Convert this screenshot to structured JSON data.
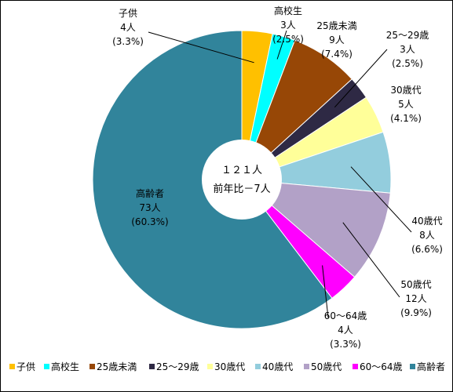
{
  "chart_data": {
    "type": "pie",
    "style": "donut",
    "center_text": {
      "line1": "１２１人",
      "line2": "前年比－7人"
    },
    "slices": [
      {
        "name": "子供",
        "value": 4,
        "count_label": "4人",
        "pct_label": "(3.3%)",
        "color": "#ffc000"
      },
      {
        "name": "高校生",
        "value": 3,
        "count_label": "3人",
        "pct_label": "(2.5%)",
        "color": "#00ffff"
      },
      {
        "name": "25歳未満",
        "value": 9,
        "count_label": "9人",
        "pct_label": "(7.4%)",
        "color": "#974706"
      },
      {
        "name": "25～29歳",
        "value": 3,
        "count_label": "3人",
        "pct_label": "(2.5%)",
        "color": "#2e2944"
      },
      {
        "name": "30歳代",
        "value": 5,
        "count_label": "5人",
        "pct_label": "(4.1%)",
        "color": "#ffff99"
      },
      {
        "name": "40歳代",
        "value": 8,
        "count_label": "8人",
        "pct_label": "(6.6%)",
        "color": "#93cddd"
      },
      {
        "name": "50歳代",
        "value": 12,
        "count_label": "12人",
        "pct_label": "(9.9%)",
        "color": "#b2a1c7"
      },
      {
        "name": "60～64歳",
        "value": 4,
        "count_label": "4人",
        "pct_label": "(3.3%)",
        "color": "#ff00ff"
      },
      {
        "name": "高齢者",
        "value": 73,
        "count_label": "73人",
        "pct_label": "(60.3%)",
        "color": "#31849b"
      }
    ],
    "legend_position": "bottom"
  }
}
